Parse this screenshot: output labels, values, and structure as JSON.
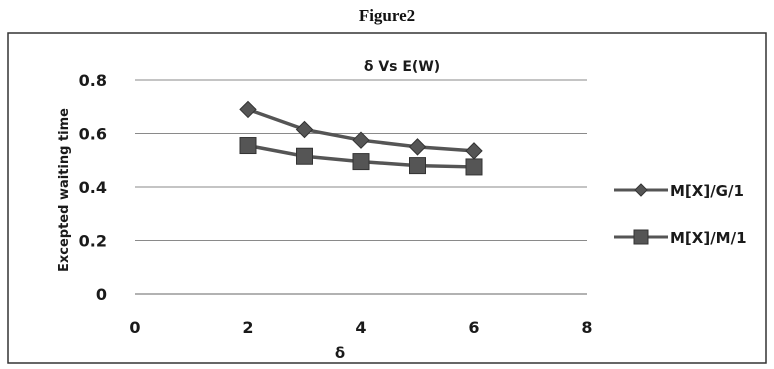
{
  "figure_caption": "Figure2",
  "chart_data": {
    "type": "line",
    "title": "δ Vs E(W)",
    "xlabel": "δ",
    "ylabel": "Excepted waiting time",
    "xlim": [
      0,
      8
    ],
    "ylim": [
      0,
      0.8
    ],
    "xticks": [
      0,
      2,
      4,
      6,
      8
    ],
    "yticks": [
      0,
      0.2,
      0.4,
      0.6,
      0.8
    ],
    "xtick_labels": [
      "0",
      "2",
      "4",
      "6",
      "8"
    ],
    "ytick_labels": [
      "0",
      "0.2",
      "0.4",
      "0.6",
      "0.8"
    ],
    "grid": "horizontal",
    "legend_position": "right",
    "series": [
      {
        "name": "M[X]/G/1",
        "marker": "diamond",
        "color": "#555555",
        "x": [
          2,
          3,
          4,
          5,
          6
        ],
        "y": [
          0.69,
          0.615,
          0.575,
          0.55,
          0.535
        ]
      },
      {
        "name": "M[X]/M/1",
        "marker": "square",
        "color": "#555555",
        "x": [
          2,
          3,
          4,
          5,
          6
        ],
        "y": [
          0.555,
          0.515,
          0.495,
          0.48,
          0.475
        ]
      }
    ]
  }
}
